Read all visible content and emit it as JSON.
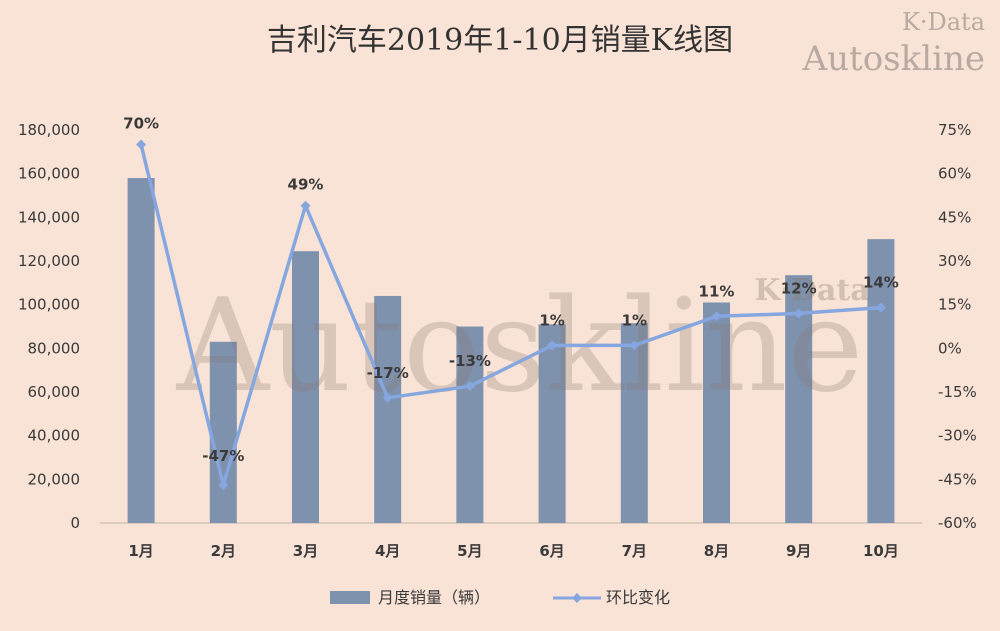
{
  "chart_data": {
    "type": "bar",
    "title": "吉利汽车2019年1-10月销量K线图",
    "categories": [
      "1月",
      "2月",
      "3月",
      "4月",
      "5月",
      "6月",
      "7月",
      "8月",
      "9月",
      "10月"
    ],
    "series": [
      {
        "name": "月度销量（辆）",
        "type": "bar",
        "axis": "left",
        "values": [
          158000,
          83000,
          124500,
          104000,
          90000,
          91000,
          91500,
          101000,
          113500,
          130000
        ]
      },
      {
        "name": "环比变化",
        "type": "line",
        "axis": "right",
        "values": [
          70,
          -47,
          49,
          -17,
          -13,
          1,
          1,
          11,
          12,
          14
        ],
        "labels": [
          "70%",
          "-47%",
          "49%",
          "-17%",
          "-13%",
          "1%",
          "1%",
          "11%",
          "12%",
          "14%"
        ]
      }
    ],
    "y_left": {
      "min": 0,
      "max": 180000,
      "step": 20000,
      "ticks": [
        "0",
        "20,000",
        "40,000",
        "60,000",
        "80,000",
        "100,000",
        "120,000",
        "140,000",
        "160,000",
        "180,000"
      ]
    },
    "y_right": {
      "min": -60,
      "max": 75,
      "step": 15,
      "ticks": [
        "-60%",
        "-45%",
        "-30%",
        "-15%",
        "0%",
        "15%",
        "30%",
        "45%",
        "60%",
        "75%"
      ]
    },
    "grid": false,
    "legend": "bottom",
    "colors": {
      "bar": "#7e91ad",
      "line": "#86a6e0",
      "background": "#f9e3d6"
    }
  },
  "watermark": {
    "center": "Autoskline",
    "center_small": "K·Data",
    "corner_line1": "K·Data",
    "corner_line2": "Autoskline"
  }
}
